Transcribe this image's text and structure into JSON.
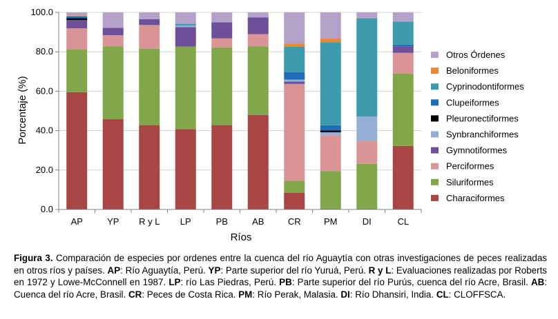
{
  "chart_data": {
    "type": "bar",
    "stacked": true,
    "categories": [
      "AP",
      "YP",
      "R y L",
      "LP",
      "PB",
      "AB",
      "CR",
      "PM",
      "DI",
      "CL"
    ],
    "xlabel": "Ríos",
    "ylabel": "Porcentaje (%)",
    "ylim": [
      0,
      100
    ],
    "yticks": [
      "0.0",
      "20.0",
      "40.0",
      "60.0",
      "80.0",
      "100.0"
    ],
    "grid": true,
    "legend_position": "right",
    "series": [
      {
        "name": "Characiformes",
        "color": "#a84545",
        "values": [
          59.5,
          45.8,
          42.8,
          40.8,
          42.8,
          48.0,
          8.5,
          0.0,
          0.0,
          32.2
        ]
      },
      {
        "name": "Siluriformes",
        "color": "#82a64a",
        "values": [
          21.6,
          37.0,
          38.8,
          41.9,
          39.4,
          34.8,
          6.0,
          19.5,
          23.2,
          36.8
        ]
      },
      {
        "name": "Perciformes",
        "color": "#d99595",
        "values": [
          10.8,
          5.6,
          12.0,
          0.0,
          4.6,
          6.2,
          49.2,
          18.2,
          11.6,
          10.5
        ]
      },
      {
        "name": "Gymnotiformes",
        "color": "#6e4f9a",
        "values": [
          4.2,
          3.8,
          3.0,
          9.8,
          8.2,
          8.5,
          1.2,
          0.0,
          0.0,
          3.3
        ]
      },
      {
        "name": "Synbranchiformes",
        "color": "#95aed6",
        "values": [
          0.0,
          0.0,
          0.0,
          0.8,
          0.0,
          0.0,
          1.0,
          1.5,
          12.4,
          0.0
        ]
      },
      {
        "name": "Pleuronectiformes",
        "color": "#000000",
        "values": [
          1.0,
          0.0,
          0.0,
          0.0,
          0.0,
          0.0,
          0.0,
          0.9,
          0.0,
          0.0
        ]
      },
      {
        "name": "Clupeiformes",
        "color": "#1f6db5",
        "values": [
          0.8,
          0.0,
          0.0,
          0.0,
          0.0,
          0.0,
          3.8,
          2.6,
          0.0,
          0.8
        ]
      },
      {
        "name": "Cyprinodontiformes",
        "color": "#3d9bad",
        "values": [
          0.0,
          0.0,
          0.0,
          0.9,
          0.0,
          0.0,
          12.8,
          42.2,
          49.8,
          11.7
        ]
      },
      {
        "name": "Beloniformes",
        "color": "#e8883a",
        "values": [
          0.6,
          0.0,
          0.0,
          0.0,
          0.0,
          0.0,
          1.6,
          1.8,
          0.0,
          0.0
        ]
      },
      {
        "name": "Otros Órdenes",
        "color": "#b4a2c8",
        "values": [
          1.5,
          7.8,
          3.4,
          5.8,
          5.0,
          2.5,
          15.9,
          13.3,
          3.0,
          4.7
        ]
      }
    ]
  },
  "caption": {
    "figure_label": "Figura 3.",
    "intro": " Comparación de especies por ordenes entre la cuenca del río Aguaytía con otras investigaciones de peces realizadas en otros ríos y países. ",
    "entries": [
      {
        "abbr": "AP",
        "text": ": Río Aguaytía, Perú. "
      },
      {
        "abbr": "YP",
        "text": ": Parte superior del río Yuruá, Perú. "
      },
      {
        "abbr": "R y L",
        "text": ": Evaluaciones realizadas por Roberts en 1972 y Lowe-McConnell en 1987. "
      },
      {
        "abbr": "LP",
        "text": ": río Las Piedras, Perú. "
      },
      {
        "abbr": "PB",
        "text": ": Parte superior del río Purús, cuenca del río Acre, Brasil. "
      },
      {
        "abbr": "AB",
        "text": ": Cuenca del río Acre, Brasil. "
      },
      {
        "abbr": "CR",
        "text": ": Peces de Costa Rica. "
      },
      {
        "abbr": "PM",
        "text": ": Río Perak, Malasia. "
      },
      {
        "abbr": "DI",
        "text": ": Río Dhansiri, India. "
      },
      {
        "abbr": "CL",
        "text": ": CLOFFSCA."
      }
    ]
  }
}
